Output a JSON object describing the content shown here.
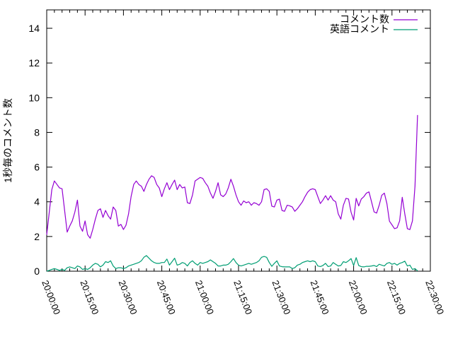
{
  "chart_data": {
    "type": "line",
    "title": "",
    "xlabel": "",
    "ylabel": "1秒毎のコメント数",
    "grid": false,
    "background_color": "#ffffff",
    "border_color": "#000000",
    "text_color": "#000000",
    "legend_position": "top-right-inside",
    "x_axis": {
      "unit": "time",
      "range_minutes": [
        0,
        150
      ],
      "major_tick_minutes": [
        0,
        15,
        30,
        45,
        60,
        75,
        90,
        105,
        120,
        135,
        150
      ],
      "tick_labels": [
        "20:00:00",
        "20:15:00",
        "20:30:00",
        "20:45:00",
        "21:00:00",
        "21:15:00",
        "21:30:00",
        "21:45:00",
        "22:00:00",
        "22:15:00",
        "22:30:00"
      ],
      "minor_tick_step_minutes": 3,
      "label_rotation_deg": 69
    },
    "y_axis": {
      "range": [
        0,
        15.06
      ],
      "major_ticks": [
        0,
        2,
        4,
        6,
        8,
        10,
        12,
        14
      ]
    },
    "series": [
      {
        "name": "コメント数",
        "color": "#9400d3",
        "t_start_min": 0,
        "t_step_min": 1,
        "values": [
          2.1,
          3.4,
          4.7,
          5.2,
          5.0,
          4.8,
          4.75,
          3.5,
          2.25,
          2.6,
          2.9,
          3.4,
          4.1,
          2.6,
          2.3,
          2.9,
          2.1,
          1.9,
          2.4,
          3.0,
          3.5,
          3.6,
          3.1,
          3.5,
          3.2,
          3.0,
          3.7,
          3.5,
          2.6,
          2.7,
          2.4,
          2.65,
          3.3,
          4.3,
          5.0,
          5.2,
          5.0,
          4.9,
          4.6,
          5.0,
          5.3,
          5.5,
          5.4,
          5.0,
          4.8,
          4.3,
          4.75,
          5.1,
          4.7,
          5.0,
          5.25,
          4.7,
          5.0,
          4.8,
          4.85,
          3.95,
          3.9,
          4.4,
          5.2,
          5.3,
          5.4,
          5.35,
          5.1,
          4.9,
          4.5,
          4.2,
          4.6,
          5.1,
          4.4,
          4.3,
          4.45,
          4.8,
          5.3,
          4.9,
          4.4,
          4.0,
          3.8,
          4.05,
          3.95,
          4.0,
          3.8,
          3.95,
          3.9,
          3.8,
          4.0,
          4.7,
          4.75,
          4.6,
          3.75,
          3.7,
          4.1,
          4.15,
          3.5,
          3.45,
          3.8,
          3.77,
          3.7,
          3.45,
          3.6,
          3.8,
          4.0,
          4.3,
          4.55,
          4.7,
          4.75,
          4.7,
          4.3,
          3.9,
          4.1,
          4.35,
          4.1,
          4.35,
          4.1,
          4.0,
          3.3,
          3.0,
          3.8,
          4.2,
          4.16,
          3.4,
          2.95,
          4.2,
          3.76,
          4.16,
          4.3,
          4.5,
          4.57,
          4.0,
          3.42,
          3.35,
          3.8,
          4.37,
          4.5,
          3.9,
          2.88,
          2.67,
          2.45,
          2.5,
          2.9,
          4.26,
          3.3,
          2.45,
          2.4,
          2.9,
          4.9,
          9.0
        ]
      },
      {
        "name": "英語コメント",
        "color": "#009e73",
        "t_start_min": 0,
        "t_step_min": 1,
        "values": [
          0.0,
          0.05,
          0.1,
          0.15,
          0.1,
          0.05,
          0.1,
          0.05,
          0.2,
          0.25,
          0.2,
          0.15,
          0.3,
          0.25,
          0.1,
          0.15,
          0.1,
          0.2,
          0.35,
          0.45,
          0.4,
          0.25,
          0.35,
          0.55,
          0.5,
          0.6,
          0.3,
          0.15,
          0.2,
          0.2,
          0.15,
          0.2,
          0.3,
          0.35,
          0.4,
          0.45,
          0.5,
          0.6,
          0.8,
          0.9,
          0.75,
          0.6,
          0.5,
          0.45,
          0.45,
          0.5,
          0.5,
          0.7,
          0.35,
          0.55,
          0.75,
          0.35,
          0.4,
          0.5,
          0.45,
          0.3,
          0.5,
          0.6,
          0.45,
          0.35,
          0.5,
          0.45,
          0.5,
          0.55,
          0.65,
          0.55,
          0.45,
          0.3,
          0.3,
          0.35,
          0.35,
          0.4,
          0.55,
          0.73,
          0.5,
          0.35,
          0.3,
          0.35,
          0.4,
          0.45,
          0.4,
          0.45,
          0.5,
          0.6,
          0.8,
          0.85,
          0.8,
          0.5,
          0.28,
          0.45,
          0.6,
          0.3,
          0.26,
          0.25,
          0.25,
          0.25,
          0.15,
          0.2,
          0.35,
          0.4,
          0.5,
          0.55,
          0.6,
          0.55,
          0.6,
          0.55,
          0.3,
          0.27,
          0.33,
          0.45,
          0.27,
          0.3,
          0.5,
          0.4,
          0.3,
          0.33,
          0.55,
          0.5,
          0.6,
          0.73,
          0.33,
          0.78,
          0.33,
          0.26,
          0.25,
          0.28,
          0.28,
          0.3,
          0.33,
          0.27,
          0.4,
          0.35,
          0.3,
          0.45,
          0.5,
          0.4,
          0.45,
          0.35,
          0.45,
          0.5,
          0.58,
          0.3,
          0.35,
          0.1,
          0.15,
          0.02
        ]
      }
    ],
    "legend": [
      {
        "label": "コメント数",
        "color": "#9400d3"
      },
      {
        "label": "英語コメント",
        "color": "#009e73"
      }
    ]
  }
}
